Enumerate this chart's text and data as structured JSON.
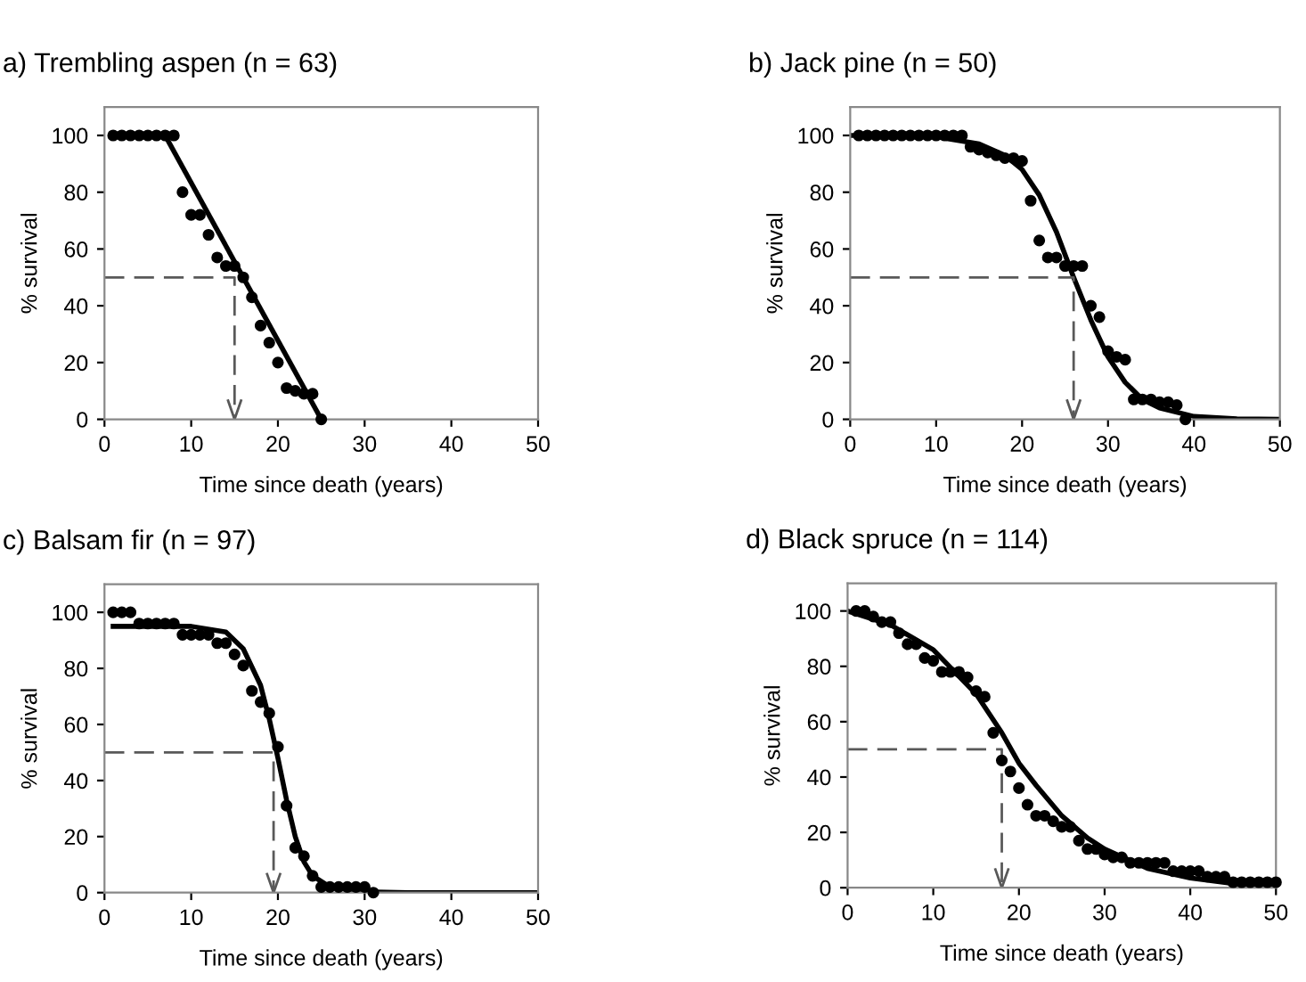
{
  "chart_data": [
    {
      "type": "scatter",
      "title": "a) Trembling aspen (n = 63)",
      "xlabel": "Time since death (years)",
      "ylabel": "% survival",
      "xlim": [
        0,
        50
      ],
      "xticks": [
        0,
        10,
        20,
        30,
        40,
        50
      ],
      "ylim": [
        0,
        110
      ],
      "yticks": [
        0,
        20,
        40,
        60,
        80,
        100
      ],
      "grid": false,
      "legend": false,
      "series": [
        {
          "marker": "circle",
          "color": "#000000",
          "x": [
            1,
            2,
            3,
            4,
            5,
            6,
            7,
            8,
            9,
            10,
            11,
            12,
            13,
            14,
            15,
            16,
            17,
            18,
            19,
            20,
            21,
            22,
            23,
            24,
            25
          ],
          "values": [
            100,
            100,
            100,
            100,
            100,
            100,
            100,
            100,
            80,
            72,
            72,
            65,
            57,
            54,
            54,
            50,
            43,
            33,
            27,
            20,
            11,
            10,
            9,
            9,
            0
          ]
        },
        {
          "type": "line",
          "color": "#000000",
          "line_style": "solid",
          "x": [
            7,
            25
          ],
          "values": [
            100,
            0
          ]
        },
        {
          "type": "line",
          "color": "#595959",
          "line_style": "dashed",
          "x": [
            0,
            15,
            15
          ],
          "values": [
            50,
            50,
            0
          ]
        }
      ]
    },
    {
      "type": "scatter",
      "title": "b) Jack pine (n = 50)",
      "xlabel": "Time since death (years)",
      "ylabel": "% survival",
      "xlim": [
        0,
        50
      ],
      "xticks": [
        0,
        10,
        20,
        30,
        40,
        50
      ],
      "ylim": [
        0,
        110
      ],
      "yticks": [
        0,
        20,
        40,
        60,
        80,
        100
      ],
      "grid": false,
      "legend": false,
      "series": [
        {
          "marker": "circle",
          "color": "#000000",
          "x": [
            1,
            2,
            3,
            4,
            5,
            6,
            7,
            8,
            9,
            10,
            11,
            12,
            13,
            14,
            15,
            16,
            17,
            18,
            19,
            20,
            21,
            22,
            23,
            24,
            25,
            26,
            27,
            28,
            29,
            30,
            31,
            32,
            33,
            34,
            35,
            36,
            37,
            38,
            39
          ],
          "values": [
            100,
            100,
            100,
            100,
            100,
            100,
            100,
            100,
            100,
            100,
            100,
            100,
            100,
            96,
            95,
            94,
            93,
            92,
            92,
            91,
            77,
            63,
            57,
            57,
            54,
            54,
            54,
            40,
            36,
            24,
            22,
            21,
            7,
            7,
            7,
            6,
            6,
            5,
            0
          ]
        },
        {
          "type": "line",
          "color": "#000000",
          "line_style": "solid",
          "x": [
            0,
            5,
            10,
            15,
            18,
            20,
            22,
            24,
            26,
            28,
            30,
            32,
            34,
            36,
            40,
            45,
            50
          ],
          "values": [
            100,
            100,
            99.5,
            97,
            93,
            88,
            79,
            66,
            50,
            35,
            22,
            13,
            7,
            4,
            1,
            0.2,
            0
          ]
        },
        {
          "type": "line",
          "color": "#595959",
          "line_style": "dashed",
          "x": [
            0,
            26,
            26
          ],
          "values": [
            50,
            50,
            0
          ]
        }
      ]
    },
    {
      "type": "scatter",
      "title": "c) Balsam fir (n = 97)",
      "xlabel": "Time since death (years)",
      "ylabel": "% survival",
      "xlim": [
        0,
        50
      ],
      "xticks": [
        0,
        10,
        20,
        30,
        40,
        50
      ],
      "ylim": [
        0,
        110
      ],
      "yticks": [
        0,
        20,
        40,
        60,
        80,
        100
      ],
      "grid": false,
      "legend": false,
      "series": [
        {
          "marker": "circle",
          "color": "#000000",
          "x": [
            1,
            2,
            3,
            4,
            5,
            6,
            7,
            8,
            9,
            10,
            11,
            12,
            13,
            14,
            15,
            16,
            17,
            18,
            19,
            20,
            21,
            22,
            23,
            24,
            25,
            26,
            27,
            28,
            29,
            30,
            31
          ],
          "values": [
            100,
            100,
            100,
            96,
            96,
            96,
            96,
            96,
            92,
            92,
            92,
            92,
            89,
            89,
            85,
            81,
            72,
            68,
            64,
            52,
            31,
            16,
            13,
            6,
            2,
            2,
            2,
            2,
            2,
            2,
            0
          ]
        },
        {
          "type": "line",
          "color": "#000000",
          "line_style": "solid",
          "x": [
            1,
            10,
            14,
            16,
            18,
            19,
            20,
            21,
            22,
            23,
            24,
            26,
            30,
            35,
            50
          ],
          "values": [
            95,
            95,
            93,
            87,
            74,
            62,
            48,
            33,
            20,
            11,
            6,
            2,
            0.3,
            0,
            0
          ]
        },
        {
          "type": "line",
          "color": "#595959",
          "line_style": "dashed",
          "x": [
            0,
            19.5,
            19.5
          ],
          "values": [
            50,
            50,
            0
          ]
        }
      ]
    },
    {
      "type": "scatter",
      "title": "d) Black spruce (n = 114)",
      "xlabel": "Time since death (years)",
      "ylabel": "% survival",
      "xlim": [
        0,
        50
      ],
      "xticks": [
        0,
        10,
        20,
        30,
        40,
        50
      ],
      "ylim": [
        0,
        110
      ],
      "yticks": [
        0,
        20,
        40,
        60,
        80,
        100
      ],
      "grid": false,
      "legend": false,
      "series": [
        {
          "marker": "circle",
          "color": "#000000",
          "x": [
            1,
            2,
            3,
            4,
            5,
            6,
            7,
            8,
            9,
            10,
            11,
            12,
            13,
            14,
            15,
            16,
            17,
            18,
            19,
            20,
            21,
            22,
            23,
            24,
            25,
            26,
            27,
            28,
            29,
            30,
            31,
            32,
            33,
            34,
            35,
            36,
            37,
            38,
            39,
            40,
            41,
            42,
            43,
            44,
            45,
            46,
            47,
            48,
            49,
            50
          ],
          "values": [
            100,
            100,
            98,
            96,
            96,
            92,
            88,
            88,
            83,
            82,
            78,
            78,
            78,
            76,
            71,
            69,
            56,
            46,
            42,
            36,
            30,
            26,
            26,
            24,
            22,
            22,
            17,
            14,
            14,
            12,
            11,
            11,
            9,
            9,
            9,
            9,
            9,
            6,
            6,
            6,
            6,
            4,
            4,
            4,
            2,
            2,
            2,
            2,
            2,
            2
          ]
        },
        {
          "type": "line",
          "color": "#000000",
          "line_style": "solid",
          "x": [
            0,
            5,
            10,
            15,
            18,
            20,
            22,
            25,
            28,
            30,
            35,
            40,
            45,
            50
          ],
          "values": [
            100,
            95,
            86,
            70,
            56,
            45,
            37,
            26,
            18,
            14,
            7,
            3.5,
            1.5,
            0.7
          ]
        },
        {
          "type": "line",
          "color": "#595959",
          "line_style": "dashed",
          "x": [
            0,
            18,
            18
          ],
          "values": [
            50,
            50,
            0
          ]
        }
      ]
    }
  ]
}
